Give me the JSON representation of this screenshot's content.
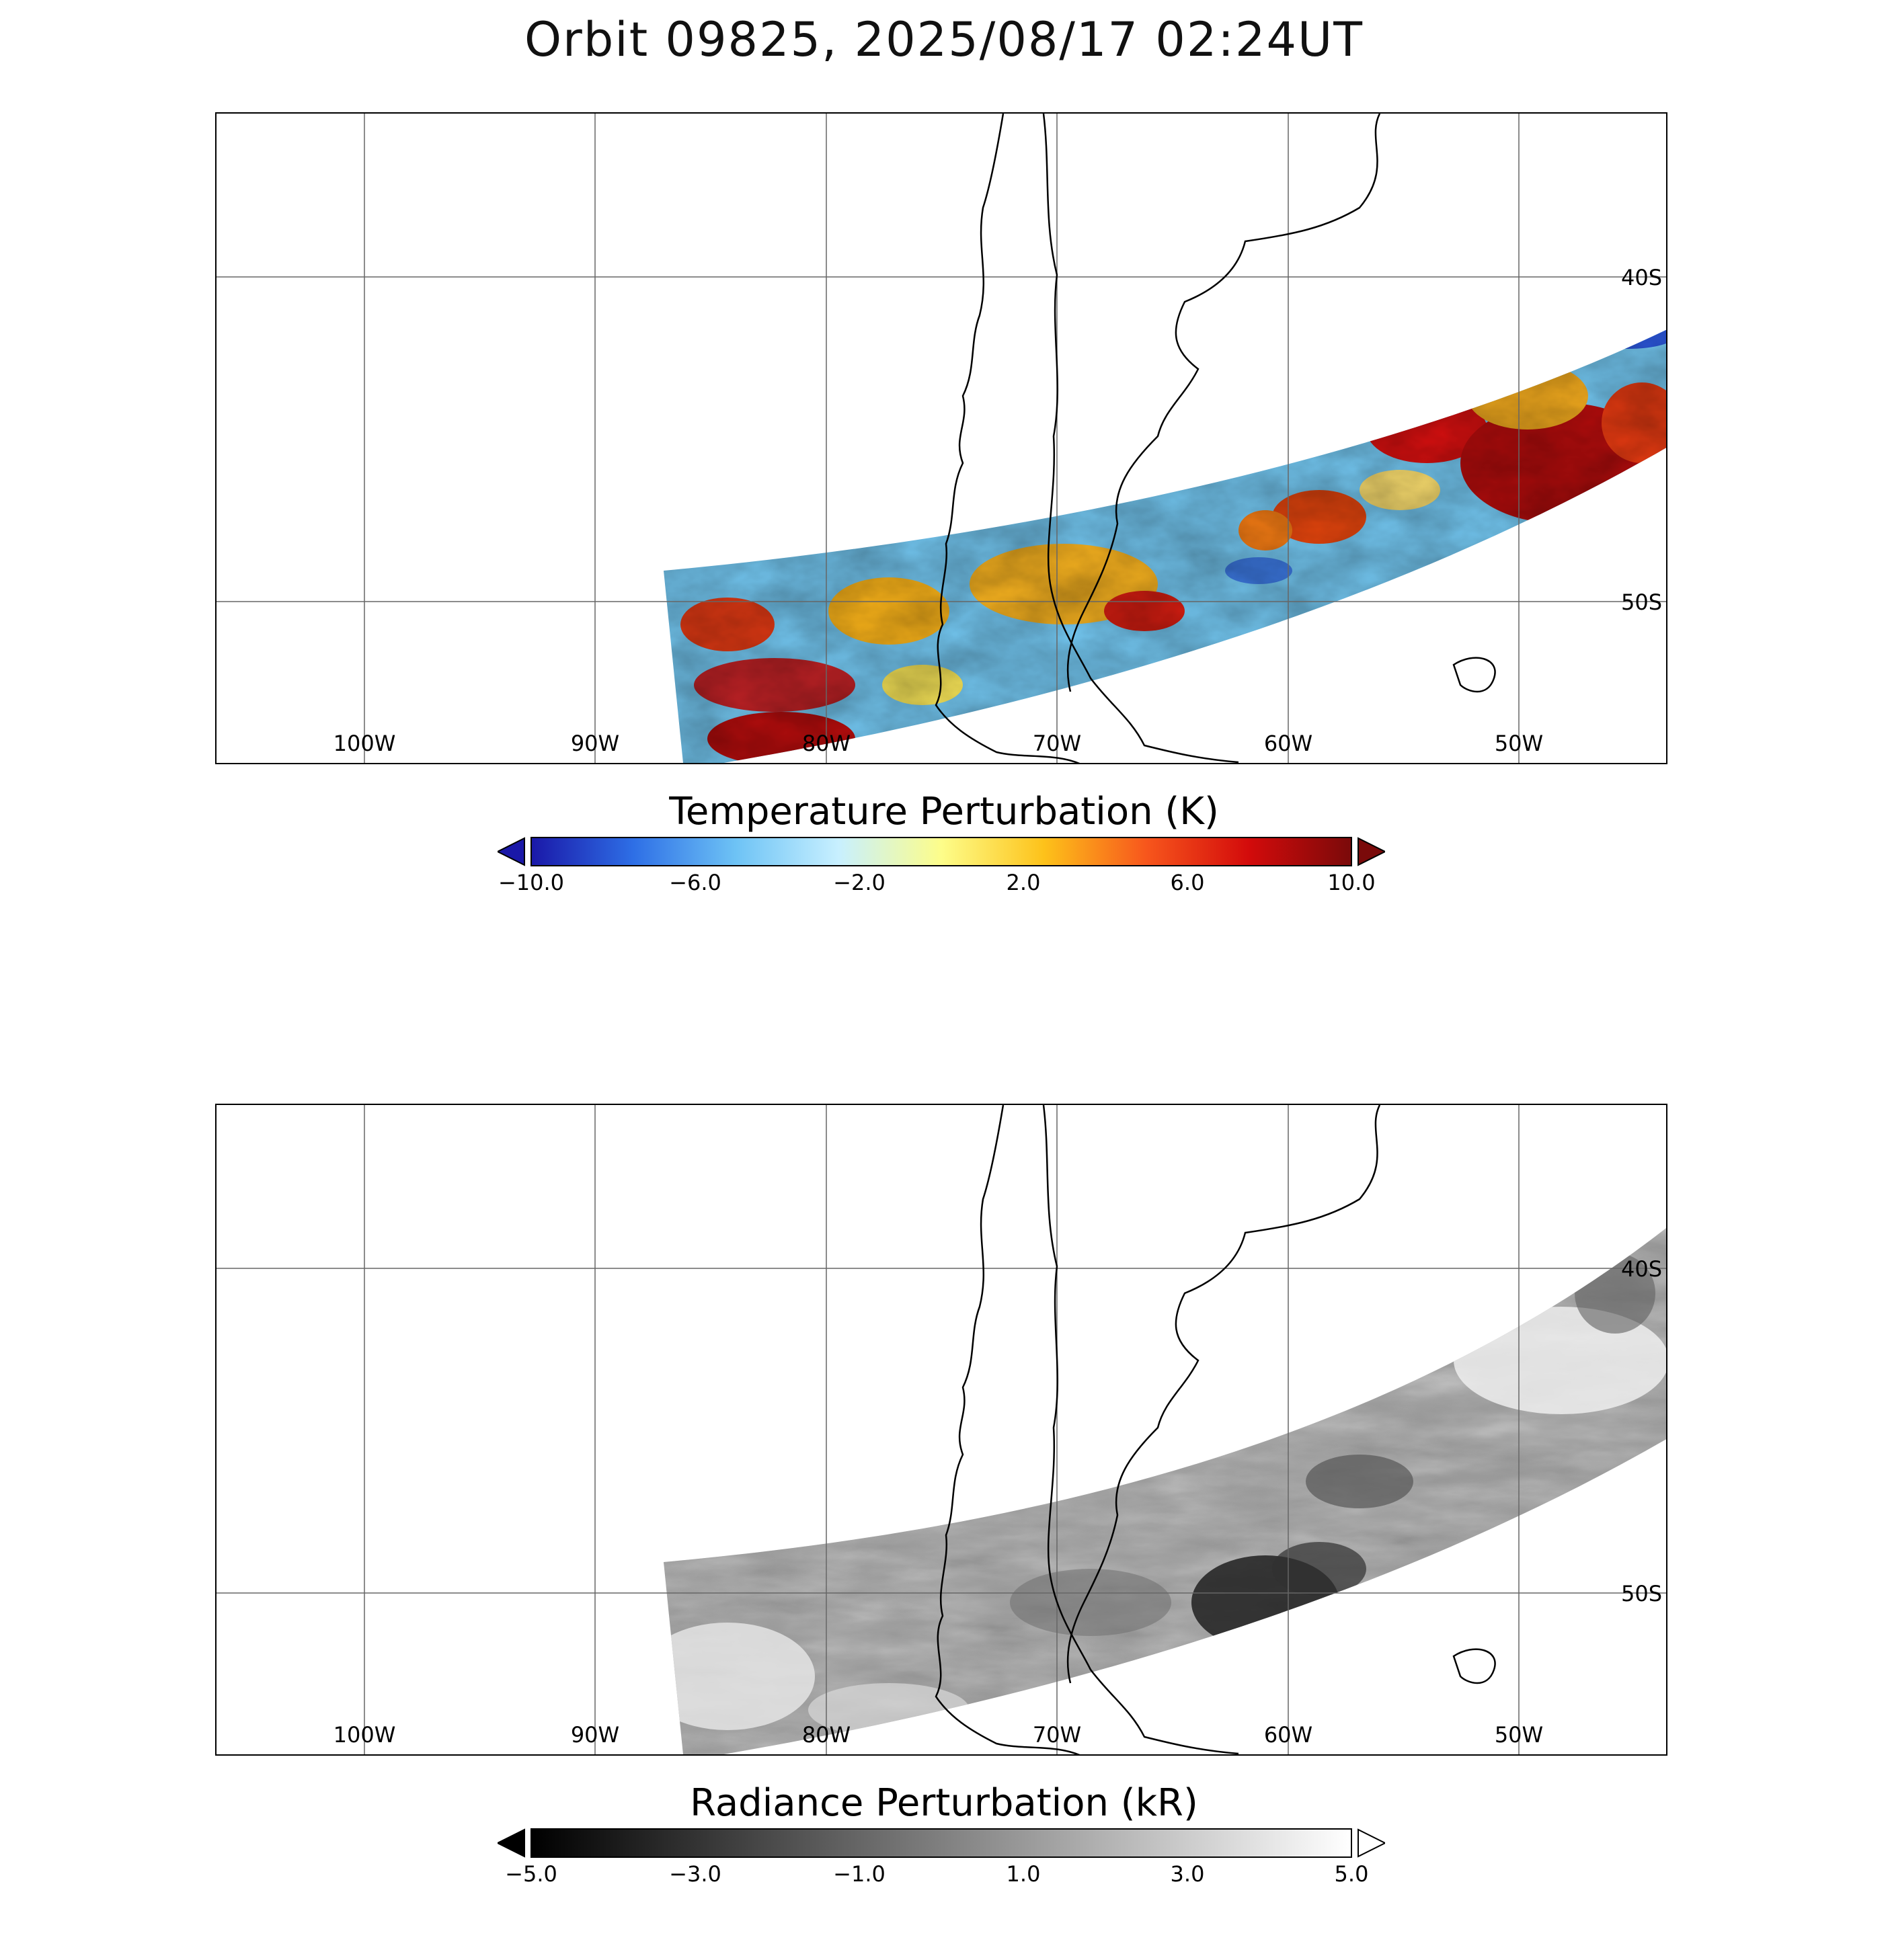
{
  "title": "Orbit 09825, 2025/08/17 02:24UT",
  "panels": [
    {
      "id": "temperature",
      "colorbar": {
        "title": "Temperature Perturbation (K)",
        "ticks": [
          "−10.0",
          "−6.0",
          "−2.0",
          "2.0",
          "6.0",
          "10.0"
        ],
        "range": [
          -10.0,
          10.0
        ],
        "colormap": [
          "#1a18a8",
          "#2e6fe6",
          "#6ec3f5",
          "#c8f0ff",
          "#fdfd8a",
          "#fdc21a",
          "#f7561c",
          "#d30b0b",
          "#7a0a0a"
        ],
        "extend_low_color": "#1a18a8",
        "extend_high_color": "#7a0a0a"
      }
    },
    {
      "id": "radiance",
      "colorbar": {
        "title": "Radiance Perturbation (kR)",
        "ticks": [
          "−5.0",
          "−3.0",
          "−1.0",
          "1.0",
          "3.0",
          "5.0"
        ],
        "range": [
          -5.0,
          5.0
        ],
        "colormap": [
          "#000000",
          "#ffffff"
        ],
        "extend_low_color": "#000000",
        "extend_high_color": "#ffffff"
      }
    }
  ],
  "map": {
    "lon_labels": [
      "100W",
      "90W",
      "80W",
      "70W",
      "60W",
      "50W"
    ],
    "lat_labels": [
      "40S",
      "50S"
    ],
    "lon_range": [
      -106.5,
      -43.5
    ],
    "lat_range": [
      -55,
      -35
    ]
  }
}
